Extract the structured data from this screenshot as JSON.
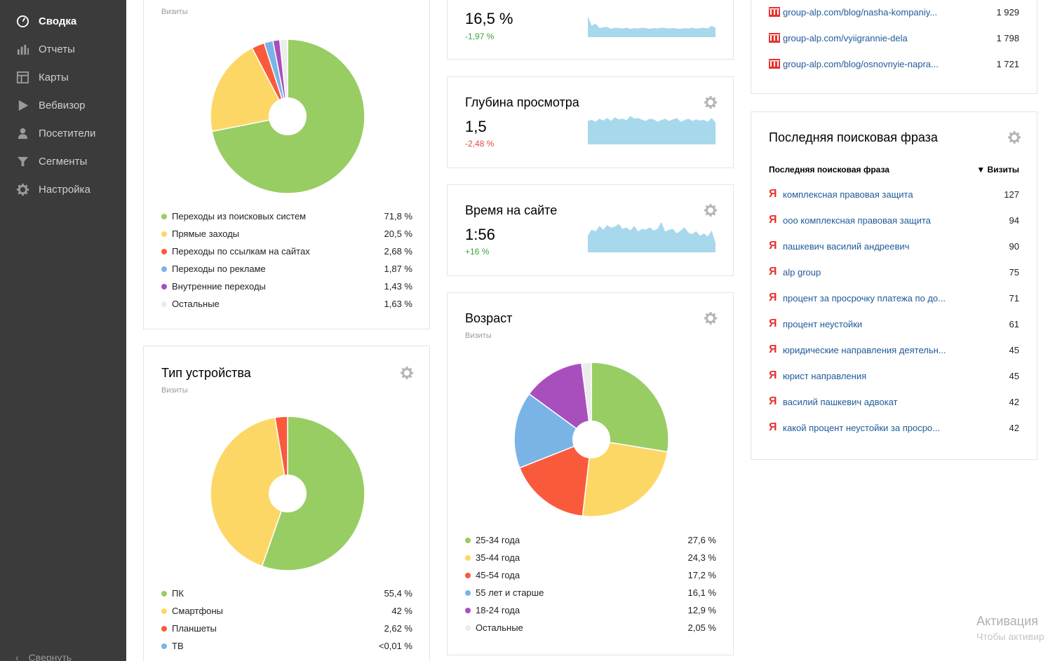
{
  "sidebar": {
    "items": [
      {
        "label": "Сводка",
        "icon": "dashboard-icon"
      },
      {
        "label": "Отчеты",
        "icon": "bar-chart-icon"
      },
      {
        "label": "Карты",
        "icon": "map-icon"
      },
      {
        "label": "Вебвизор",
        "icon": "play-icon"
      },
      {
        "label": "Посетители",
        "icon": "person-icon"
      },
      {
        "label": "Сегменты",
        "icon": "filter-icon"
      },
      {
        "label": "Настройка",
        "icon": "gear-icon"
      }
    ],
    "collapse_label": "Свернуть"
  },
  "sources_card": {
    "subtitle": "Визиты",
    "chart_data": {
      "type": "pie",
      "categories": [
        "Переходы из поисковых систем",
        "Прямые заходы",
        "Переходы по ссылкам на сайтах",
        "Переходы по рекламе",
        "Внутренние переходы",
        "Остальные"
      ],
      "values": [
        71.8,
        20.5,
        2.68,
        1.87,
        1.43,
        1.63
      ],
      "labels": [
        "71,8 %",
        "20,5 %",
        "2,68 %",
        "1,87 %",
        "1,43 %",
        "1,63 %"
      ],
      "colors": [
        "#98cd63",
        "#fdd766",
        "#fa5a3c",
        "#7ab4e6",
        "#a94fbd",
        "#ececec"
      ]
    }
  },
  "devices_card": {
    "title": "Тип устройства",
    "subtitle": "Визиты",
    "chart_data": {
      "type": "pie",
      "categories": [
        "ПК",
        "Смартфоны",
        "Планшеты",
        "ТВ"
      ],
      "values": [
        55.4,
        42,
        2.62,
        0.01
      ],
      "labels": [
        "55,4 %",
        "42 %",
        "2,62 %",
        "<0,01 %"
      ],
      "colors": [
        "#98cd63",
        "#fdd766",
        "#fa5a3c",
        "#7ab4e6"
      ]
    }
  },
  "metrics": [
    {
      "title": "",
      "value": "16,5 %",
      "delta": "-1,97 %",
      "delta_type": "pos",
      "chart_data": {
        "type": "area",
        "values": [
          0.55,
          0.3,
          0.36,
          0.24,
          0.26,
          0.27,
          0.22,
          0.25,
          0.24,
          0.23,
          0.25,
          0.22,
          0.24,
          0.23,
          0.25,
          0.24,
          0.22,
          0.24,
          0.23,
          0.25,
          0.24,
          0.23,
          0.24,
          0.23,
          0.22,
          0.24,
          0.23,
          0.25,
          0.22,
          0.24,
          0.25,
          0.23,
          0.3,
          0.25
        ]
      }
    },
    {
      "title": "Глубина просмотра",
      "value": "1,5",
      "delta": "-2,48 %",
      "delta_type": "neg",
      "chart_data": {
        "type": "area",
        "values": [
          0.62,
          0.65,
          0.6,
          0.68,
          0.63,
          0.7,
          0.62,
          0.72,
          0.66,
          0.68,
          0.64,
          0.75,
          0.68,
          0.7,
          0.65,
          0.62,
          0.68,
          0.66,
          0.6,
          0.64,
          0.68,
          0.62,
          0.66,
          0.7,
          0.6,
          0.64,
          0.68,
          0.62,
          0.66,
          0.63,
          0.65,
          0.6,
          0.7,
          0.58
        ]
      }
    },
    {
      "title": "Время на сайте",
      "value": "1:56",
      "delta": "+16 %",
      "delta_type": "pos",
      "chart_data": {
        "type": "area",
        "values": [
          0.45,
          0.6,
          0.55,
          0.7,
          0.6,
          0.72,
          0.65,
          0.68,
          0.75,
          0.62,
          0.66,
          0.58,
          0.7,
          0.55,
          0.62,
          0.6,
          0.66,
          0.58,
          0.62,
          0.8,
          0.55,
          0.6,
          0.62,
          0.5,
          0.58,
          0.66,
          0.52,
          0.48,
          0.56,
          0.44,
          0.5,
          0.42,
          0.58,
          0.25
        ]
      }
    }
  ],
  "age_card": {
    "title": "Возраст",
    "subtitle": "Визиты",
    "chart_data": {
      "type": "pie",
      "categories": [
        "25-34 года",
        "35-44 года",
        "45-54 года",
        "55 лет и старше",
        "18-24 года",
        "Остальные"
      ],
      "values": [
        27.6,
        24.3,
        17.2,
        16.1,
        12.9,
        2.05
      ],
      "labels": [
        "27,6 %",
        "24,3 %",
        "17,2 %",
        "16,1 %",
        "12,9 %",
        "2,05 %"
      ],
      "colors": [
        "#98cd63",
        "#fdd766",
        "#fa5a3c",
        "#7ab4e6",
        "#a94fbd",
        "#ececec"
      ]
    }
  },
  "pages_card": {
    "rows": [
      {
        "url": "group-alp.com/blog/nasha-kompaniy...",
        "visits": "1 929"
      },
      {
        "url": "group-alp.com/vyiigrannie-dela",
        "visits": "1 798"
      },
      {
        "url": "group-alp.com/blog/osnovnyie-napra...",
        "visits": "1 721"
      }
    ]
  },
  "search_card": {
    "title": "Последняя поисковая фраза",
    "col_phrase": "Последняя поисковая фраза",
    "col_visits": "▼ Визиты",
    "ya_glyph": "Я",
    "rows": [
      {
        "phrase": "комплексная правовая защита",
        "visits": "127"
      },
      {
        "phrase": "ооо комплексная правовая защита",
        "visits": "94"
      },
      {
        "phrase": "пашкевич василий андреевич",
        "visits": "90"
      },
      {
        "phrase": "alp group",
        "visits": "75"
      },
      {
        "phrase": "процент за просрочку платежа по до...",
        "visits": "71"
      },
      {
        "phrase": "процент неустойки",
        "visits": "61"
      },
      {
        "phrase": "юридические направления деятельн...",
        "visits": "45"
      },
      {
        "phrase": "юрист направления",
        "visits": "45"
      },
      {
        "phrase": "василий пашкевич адвокат",
        "visits": "42"
      },
      {
        "phrase": "какой процент неустойки за просро...",
        "visits": "42"
      }
    ]
  },
  "watermark": {
    "title": "Активация",
    "subtitle": "Чтобы активир"
  },
  "colors": {
    "sidebar_bg": "#3b3b3b",
    "spark_fill": "#a8d8ec",
    "link": "#1f5a99"
  }
}
